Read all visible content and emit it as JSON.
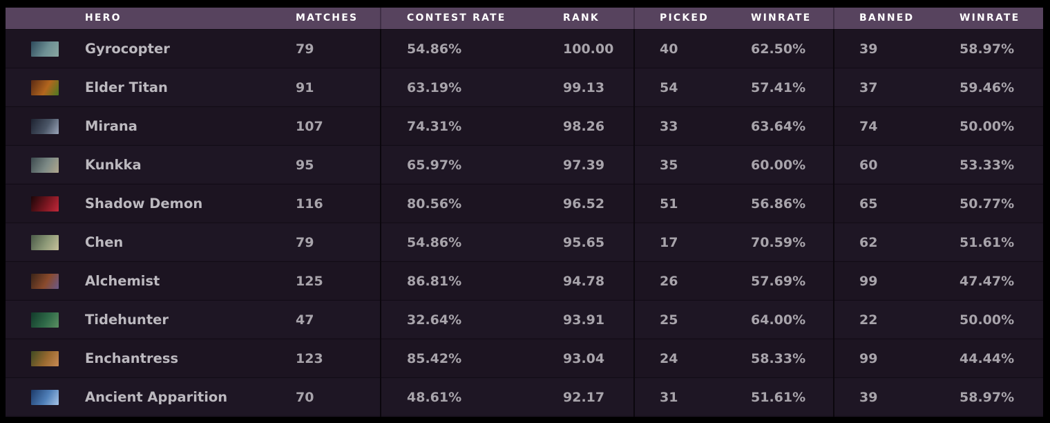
{
  "table": {
    "headers": {
      "hero": "HERO",
      "matches": "MATCHES",
      "contest_rate": "CONTEST RATE",
      "rank": "RANK",
      "picked": "PICKED",
      "picked_winrate": "WINRATE",
      "banned": "BANNED",
      "banned_winrate": "WINRATE"
    },
    "rows": [
      {
        "hero": "Gyrocopter",
        "icon": "gyrocopter-portrait-icon",
        "matches": "79",
        "contest_rate": "54.86%",
        "rank": "100.00",
        "picked": "40",
        "picked_winrate": "62.50%",
        "banned": "39",
        "banned_winrate": "58.97%",
        "colors": [
          "#2d4a5c",
          "#6d8f93",
          "#8aa7a2"
        ]
      },
      {
        "hero": "Elder Titan",
        "icon": "elder-titan-portrait-icon",
        "matches": "91",
        "contest_rate": "63.19%",
        "rank": "99.13",
        "picked": "54",
        "picked_winrate": "57.41%",
        "banned": "37",
        "banned_winrate": "59.46%",
        "colors": [
          "#5a2a14",
          "#b3661e",
          "#4c7a22"
        ]
      },
      {
        "hero": "Mirana",
        "icon": "mirana-portrait-icon",
        "matches": "107",
        "contest_rate": "74.31%",
        "rank": "98.26",
        "picked": "33",
        "picked_winrate": "63.64%",
        "banned": "74",
        "banned_winrate": "50.00%",
        "colors": [
          "#1d2230",
          "#4a5566",
          "#9aa4b8"
        ]
      },
      {
        "hero": "Kunkka",
        "icon": "kunkka-portrait-icon",
        "matches": "95",
        "contest_rate": "65.97%",
        "rank": "97.39",
        "picked": "35",
        "picked_winrate": "60.00%",
        "banned": "60",
        "banned_winrate": "53.33%",
        "colors": [
          "#3c4a4e",
          "#7d8a86",
          "#b1a78e"
        ]
      },
      {
        "hero": "Shadow Demon",
        "icon": "shadow-demon-portrait-icon",
        "matches": "116",
        "contest_rate": "80.56%",
        "rank": "96.52",
        "picked": "51",
        "picked_winrate": "56.86%",
        "banned": "65",
        "banned_winrate": "50.77%",
        "colors": [
          "#1a0608",
          "#7a1620",
          "#c2283a"
        ]
      },
      {
        "hero": "Chen",
        "icon": "chen-portrait-icon",
        "matches": "79",
        "contest_rate": "54.86%",
        "rank": "95.65",
        "picked": "17",
        "picked_winrate": "70.59%",
        "banned": "62",
        "banned_winrate": "51.61%",
        "colors": [
          "#4a5a48",
          "#8e9a78",
          "#c7c09a"
        ]
      },
      {
        "hero": "Alchemist",
        "icon": "alchemist-portrait-icon",
        "matches": "125",
        "contest_rate": "86.81%",
        "rank": "94.78",
        "picked": "26",
        "picked_winrate": "57.69%",
        "banned": "99",
        "banned_winrate": "47.47%",
        "colors": [
          "#3a2418",
          "#8a4a2c",
          "#6b5a8a"
        ]
      },
      {
        "hero": "Tidehunter",
        "icon": "tidehunter-portrait-icon",
        "matches": "47",
        "contest_rate": "32.64%",
        "rank": "93.91",
        "picked": "25",
        "picked_winrate": "64.00%",
        "banned": "22",
        "banned_winrate": "50.00%",
        "colors": [
          "#123a2a",
          "#2f6a48",
          "#5c8f62"
        ]
      },
      {
        "hero": "Enchantress",
        "icon": "enchantress-portrait-icon",
        "matches": "123",
        "contest_rate": "85.42%",
        "rank": "93.04",
        "picked": "24",
        "picked_winrate": "58.33%",
        "banned": "99",
        "banned_winrate": "44.44%",
        "colors": [
          "#3e4a22",
          "#9a6a30",
          "#c88a54"
        ]
      },
      {
        "hero": "Ancient Apparition",
        "icon": "ancient-apparition-portrait-icon",
        "matches": "70",
        "contest_rate": "48.61%",
        "rank": "92.17",
        "picked": "31",
        "picked_winrate": "51.61%",
        "banned": "39",
        "banned_winrate": "58.97%",
        "colors": [
          "#1c3a6a",
          "#4f7fb8",
          "#a6c4e6"
        ]
      }
    ]
  },
  "colors": {
    "header_bg": "#57435e",
    "row_bg": "#1c1421",
    "text": "#a8a4ab",
    "header_text": "#ffffff"
  }
}
